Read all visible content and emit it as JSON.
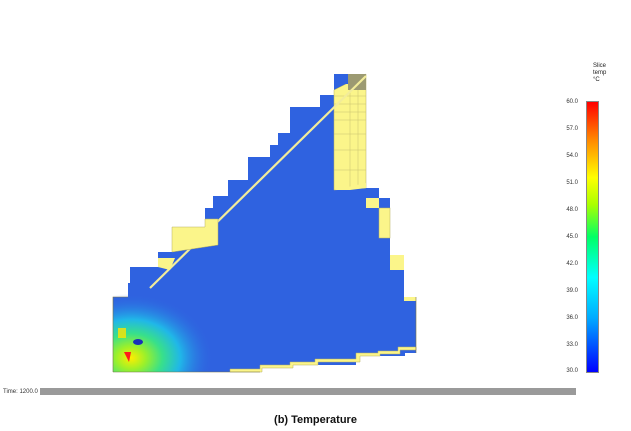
{
  "legend": {
    "title_line1": "Slice",
    "title_line2": "temp",
    "title_line3": "°C",
    "ticks": [
      "60.0",
      "57.0",
      "54.0",
      "51.0",
      "48.0",
      "45.0",
      "42.0",
      "39.0",
      "36.0",
      "33.0",
      "30.0"
    ],
    "colors": [
      "#0000ff",
      "#00aaff",
      "#00ffff",
      "#00ff66",
      "#aaff00",
      "#ffff00",
      "#ff8800",
      "#ff0000"
    ]
  },
  "time": {
    "label": "Time: 1200.0"
  },
  "caption": "(b)  Temperature",
  "colors": {
    "base_blue": "#2f62e0",
    "yellow_cells": "#fbf58a",
    "hot_red": "#ff1a1a",
    "warm_green": "#45d86a"
  }
}
